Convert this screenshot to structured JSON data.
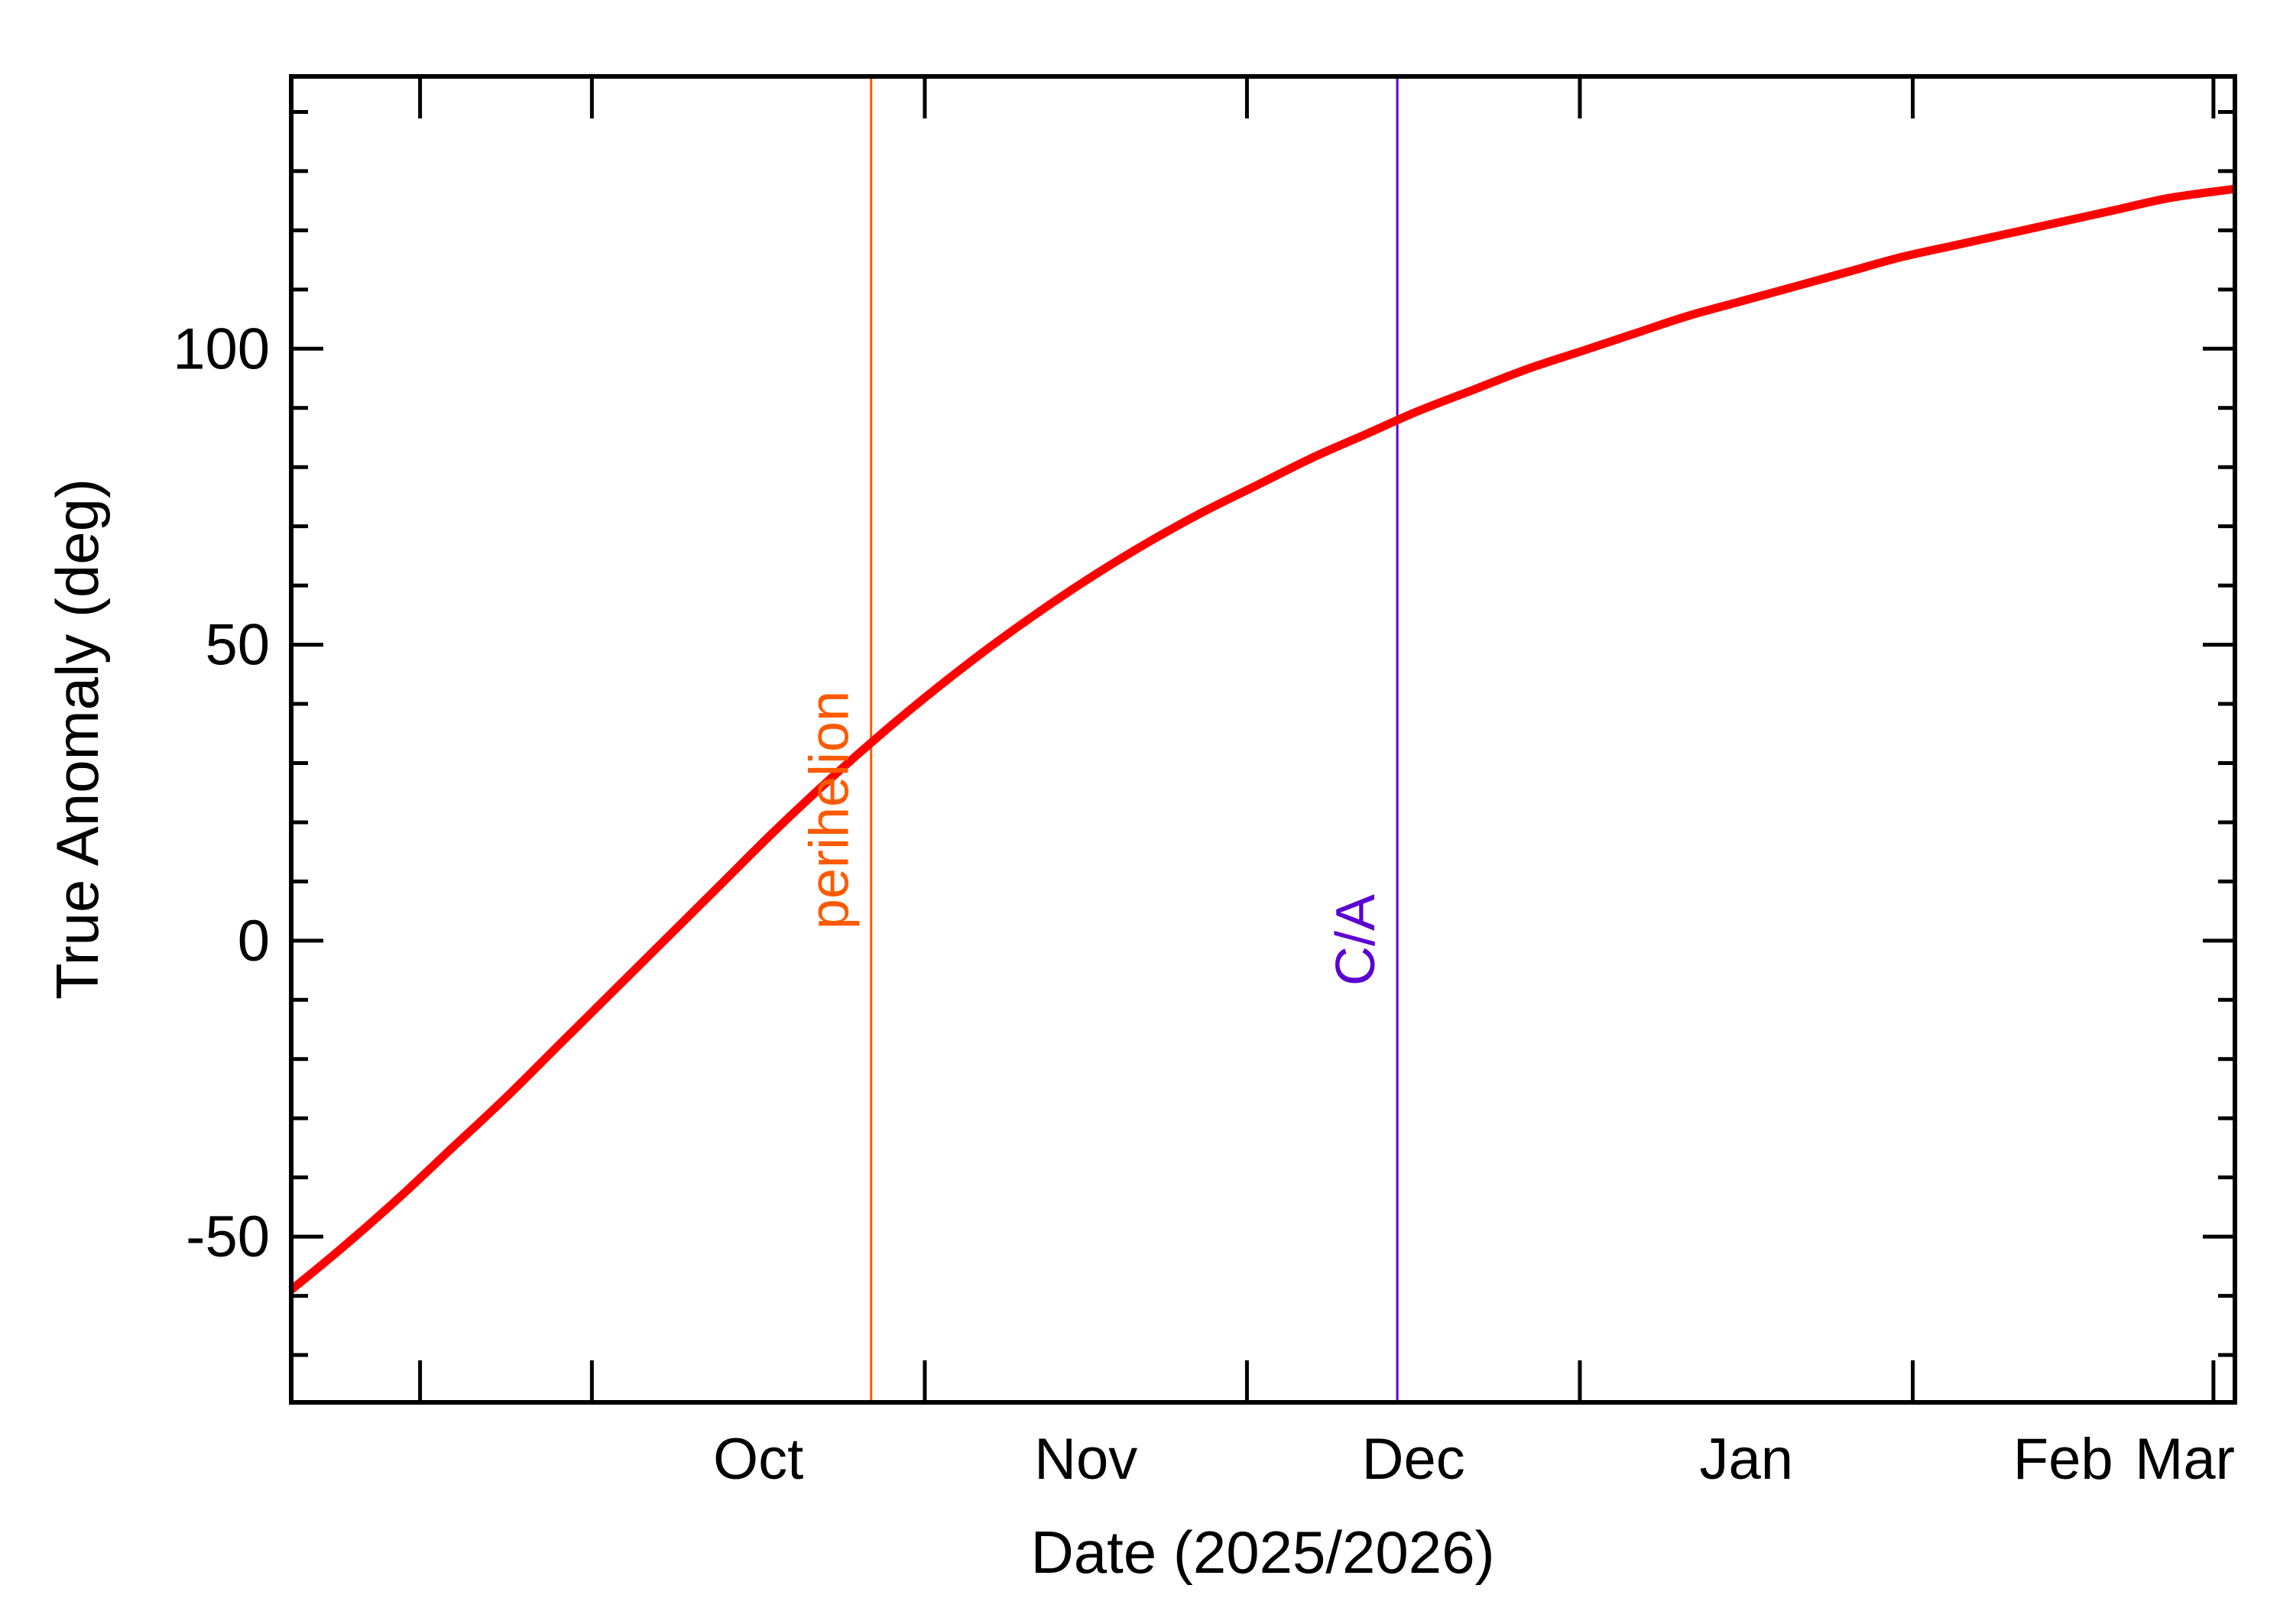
{
  "chart_data": {
    "type": "line",
    "xlabel": "Date (2025/2026)",
    "ylabel": "True Anomaly (deg)",
    "xlim": [
      "2025-09-03",
      "2026-03-03"
    ],
    "ylim": [
      -78,
      146
    ],
    "x_month_ticks": [
      {
        "label": "Oct",
        "date": "2025-10-01"
      },
      {
        "label": "Nov",
        "date": "2025-11-01"
      },
      {
        "label": "Dec",
        "date": "2025-12-01"
      },
      {
        "label": "Jan",
        "date": "2026-01-01"
      },
      {
        "label": "Feb",
        "date": "2026-02-01"
      },
      {
        "label": "Mar",
        "date": "2026-03-01"
      }
    ],
    "y_ticks": [
      -50,
      0,
      50,
      100
    ],
    "y_tick_labels": [
      "-50",
      "0",
      "50",
      "100"
    ],
    "y_minor_step": 10,
    "grid": false,
    "series": [
      {
        "color": "#ff0000",
        "x": [
          "2025-09-03",
          "2025-09-08",
          "2025-09-13",
          "2025-09-18",
          "2025-09-23",
          "2025-09-28",
          "2025-10-03",
          "2025-10-08",
          "2025-10-13",
          "2025-10-18",
          "2025-10-23",
          "2025-10-28",
          "2025-11-02",
          "2025-11-07",
          "2025-11-12",
          "2025-11-17",
          "2025-11-22",
          "2025-11-27",
          "2025-12-02",
          "2025-12-07",
          "2025-12-12",
          "2025-12-17",
          "2025-12-22",
          "2025-12-27",
          "2026-01-01",
          "2026-01-06",
          "2026-01-11",
          "2026-01-16",
          "2026-01-21",
          "2026-01-26",
          "2026-01-31",
          "2026-02-05",
          "2026-02-10",
          "2026-02-15",
          "2026-02-20",
          "2026-02-25",
          "2026-03-03"
        ],
        "y": [
          -59,
          -51.5,
          -43.5,
          -35,
          -26.5,
          -17.5,
          -8.5,
          0.5,
          9.5,
          18.5,
          27,
          35,
          42.5,
          49.5,
          56,
          62,
          67.5,
          72.5,
          77,
          81.5,
          85.5,
          89.5,
          93,
          96.5,
          99.5,
          102.5,
          105.5,
          108,
          110.5,
          113,
          115.5,
          117.5,
          119.5,
          121.5,
          123.5,
          125.5,
          127
        ]
      }
    ],
    "markers": [
      {
        "label": "perihelion",
        "date": "2025-10-27",
        "color": "#ff5a00"
      },
      {
        "label": "C/A",
        "date": "2025-12-15",
        "color": "#5a00d2"
      }
    ]
  }
}
